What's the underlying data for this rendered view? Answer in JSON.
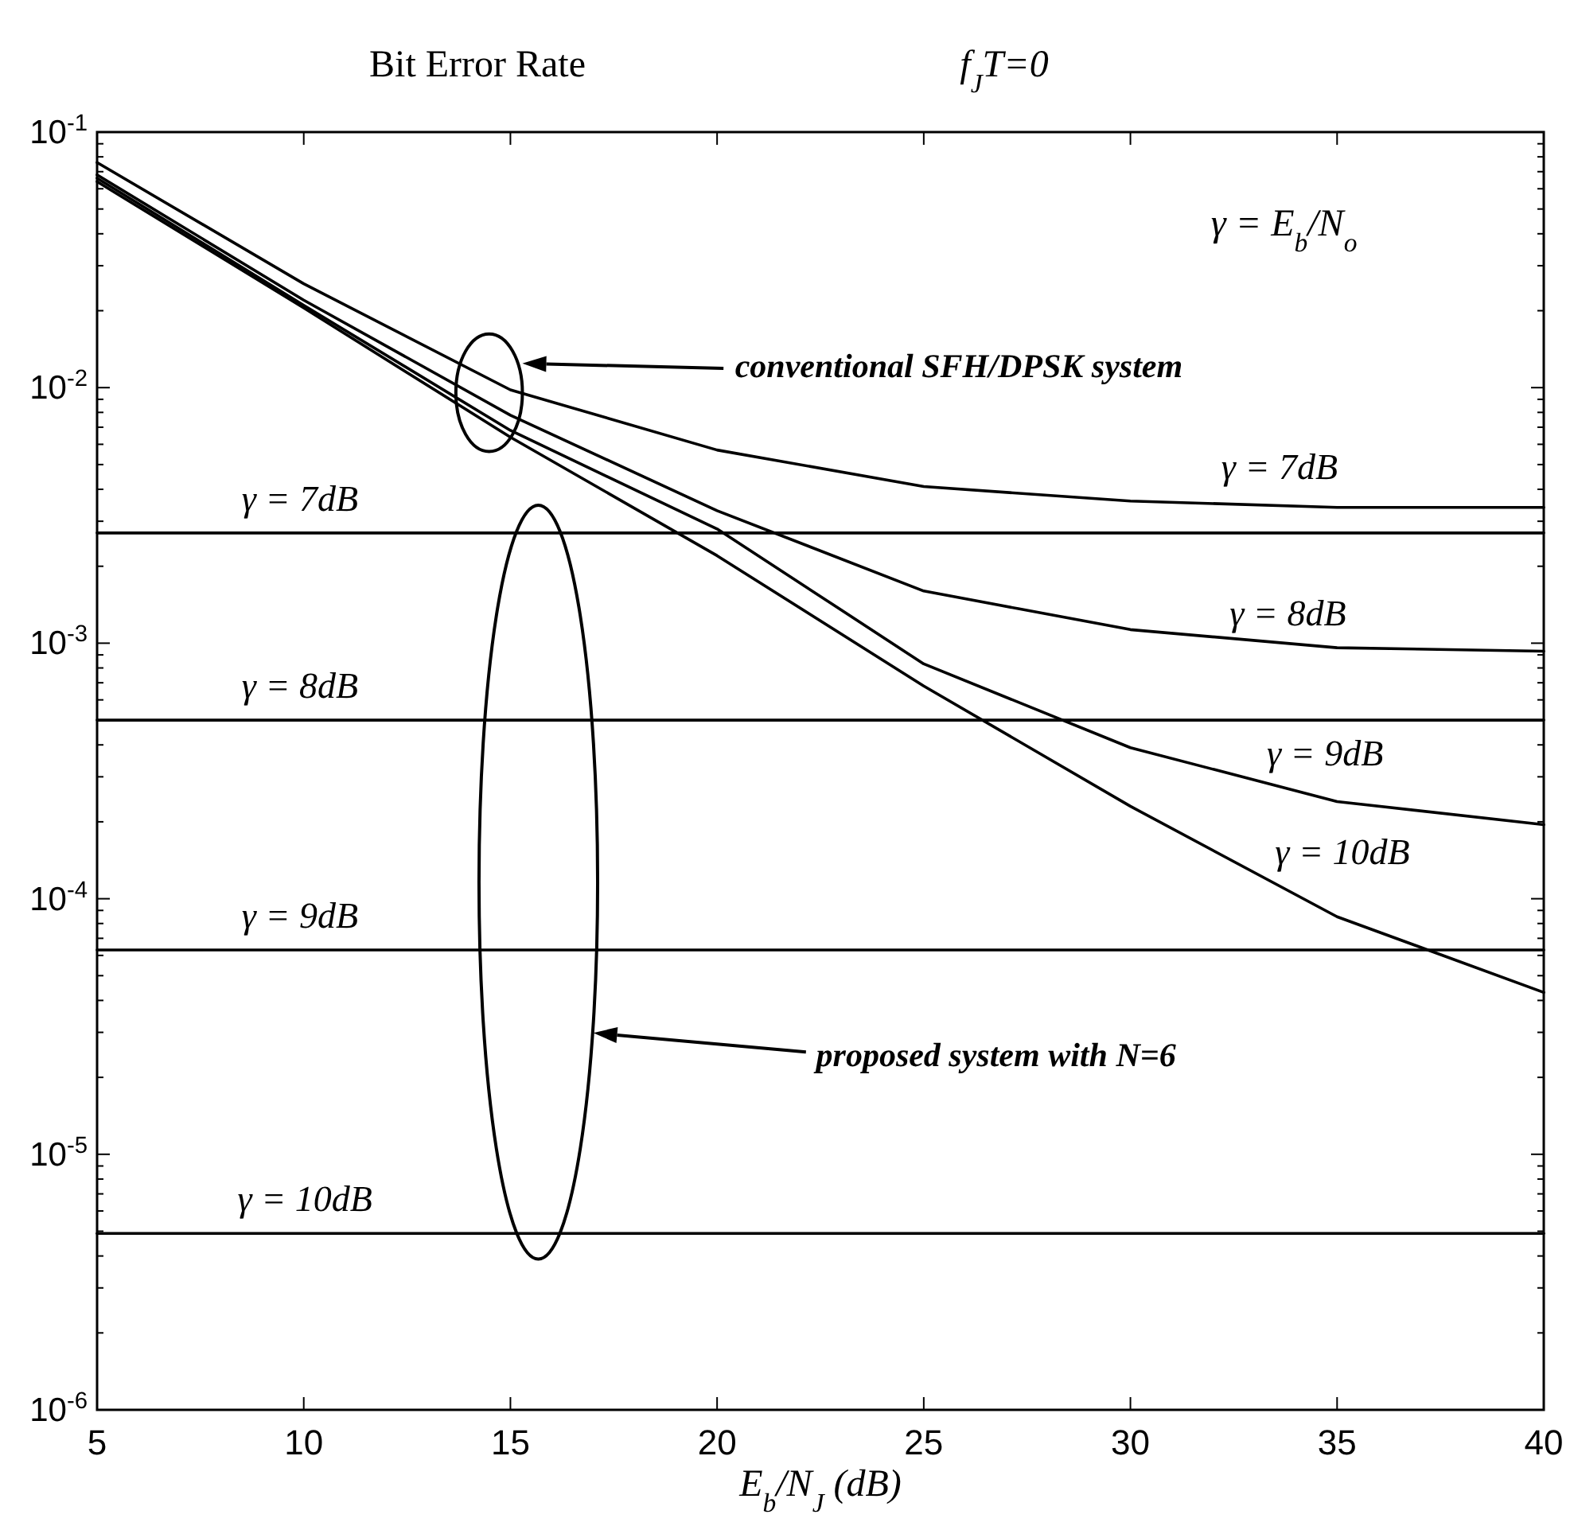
{
  "chart_data": {
    "type": "line",
    "title": "Bit Error Rate",
    "subtitle": "f$_{J}$T=0",
    "xlabel": "E$_{b}$/N$_{J}$ (dB)",
    "log": "y",
    "xlim": [
      5,
      40
    ],
    "xticks": [
      5,
      10,
      15,
      20,
      25,
      30,
      35,
      40
    ],
    "ylim": [
      1e-06,
      0.1
    ],
    "yticks": [
      {
        "value": 1e-06,
        "label": "10$^{-6}$"
      },
      {
        "value": 2e-06,
        "label": null
      },
      {
        "value": 3e-06,
        "label": null
      },
      {
        "value": 4e-06,
        "label": null
      },
      {
        "value": 5e-06,
        "label": null
      },
      {
        "value": 6e-06,
        "label": null
      },
      {
        "value": 7e-06,
        "label": null
      },
      {
        "value": 8e-06,
        "label": null
      },
      {
        "value": 9e-06,
        "label": null
      },
      {
        "value": 1e-05,
        "label": "10$^{-5}$"
      },
      {
        "value": 2e-05,
        "label": null
      },
      {
        "value": 3e-05,
        "label": null
      },
      {
        "value": 4e-05,
        "label": null
      },
      {
        "value": 5e-05,
        "label": null
      },
      {
        "value": 6e-05,
        "label": null
      },
      {
        "value": 7e-05,
        "label": null
      },
      {
        "value": 8e-05,
        "label": null
      },
      {
        "value": 9e-05,
        "label": null
      },
      {
        "value": 0.0001,
        "label": "10$^{-4}$"
      },
      {
        "value": 0.0002,
        "label": null
      },
      {
        "value": 0.0003,
        "label": null
      },
      {
        "value": 0.0004,
        "label": null
      },
      {
        "value": 0.0005,
        "label": null
      },
      {
        "value": 0.0006,
        "label": null
      },
      {
        "value": 0.0007,
        "label": null
      },
      {
        "value": 0.0008,
        "label": null
      },
      {
        "value": 0.0009,
        "label": null
      },
      {
        "value": 0.001,
        "label": "10$^{-3}$"
      },
      {
        "value": 0.002,
        "label": null
      },
      {
        "value": 0.003,
        "label": null
      },
      {
        "value": 0.004,
        "label": null
      },
      {
        "value": 0.005,
        "label": null
      },
      {
        "value": 0.006,
        "label": null
      },
      {
        "value": 0.007,
        "label": null
      },
      {
        "value": 0.008,
        "label": null
      },
      {
        "value": 0.009,
        "label": null
      },
      {
        "value": 0.01,
        "label": "10$^{-2}$"
      },
      {
        "value": 0.02,
        "label": null
      },
      {
        "value": 0.03,
        "label": null
      },
      {
        "value": 0.04,
        "label": null
      },
      {
        "value": 0.05,
        "label": null
      },
      {
        "value": 0.06,
        "label": null
      },
      {
        "value": 0.07,
        "label": null
      },
      {
        "value": 0.08,
        "label": null
      },
      {
        "value": 0.09,
        "label": null
      },
      {
        "value": 0.1,
        "label": "10$^{-1}$"
      }
    ],
    "series": [
      {
        "color": "#000000",
        "x": [
          5,
          10,
          15,
          20,
          25,
          30,
          35,
          40
        ],
        "values": [
          0.076,
          0.0255,
          0.0098,
          0.0057,
          0.0041,
          0.0036,
          0.0034,
          0.0034
        ]
      },
      {
        "color": "#000000",
        "x": [
          5,
          10,
          15,
          20,
          25,
          30,
          35,
          40
        ],
        "values": [
          0.068,
          0.022,
          0.0078,
          0.0033,
          0.0016,
          0.00113,
          0.00096,
          0.00093
        ]
      },
      {
        "color": "#000000",
        "x": [
          5,
          10,
          15,
          20,
          25,
          30,
          35,
          40
        ],
        "values": [
          0.066,
          0.021,
          0.0068,
          0.0028,
          0.00083,
          0.00039,
          0.00024,
          0.000195
        ]
      },
      {
        "color": "#000000",
        "x": [
          5,
          10,
          15,
          20,
          25,
          30,
          35,
          40
        ],
        "values": [
          0.064,
          0.0205,
          0.0064,
          0.0022,
          0.00068,
          0.00023,
          8.5e-05,
          4.3e-05
        ]
      },
      {
        "color": "#000000",
        "x": [
          5,
          40
        ],
        "values": [
          0.0027,
          0.0027
        ]
      },
      {
        "color": "#000000",
        "x": [
          5,
          40
        ],
        "values": [
          0.0005,
          0.0005
        ]
      },
      {
        "color": "#000000",
        "x": [
          5,
          40
        ],
        "values": [
          6.3e-05,
          6.3e-05
        ]
      },
      {
        "color": "#000000",
        "x": [
          5,
          40
        ],
        "values": [
          4.9e-06,
          4.9e-06
        ]
      }
    ],
    "annotations": [
      {
        "text": "γ = 7dB",
        "x": 32.2,
        "y": 0.0034
      },
      {
        "text": "γ = 8dB",
        "x": 32.4,
        "y": 0.00096
      },
      {
        "text": "γ = 9dB",
        "x": 33.3,
        "y": 0.00028
      },
      {
        "text": "γ = 10dB",
        "x": 33.5,
        "y": 0.000115
      },
      {
        "text": "γ = 7dB",
        "x": 8.5,
        "y": 0.0027
      },
      {
        "text": "γ = 8dB",
        "x": 8.5,
        "y": 0.0005
      },
      {
        "text": "γ = 9dB",
        "x": 8.5,
        "y": 6.3e-05
      },
      {
        "text": "γ = 10dB",
        "x": 8.4,
        "y": 4.9e-06
      },
      "conventional SFH/DPSK system",
      "proposed system with N=6",
      "γ = E$_{b}$/N$_{o}$"
    ]
  }
}
